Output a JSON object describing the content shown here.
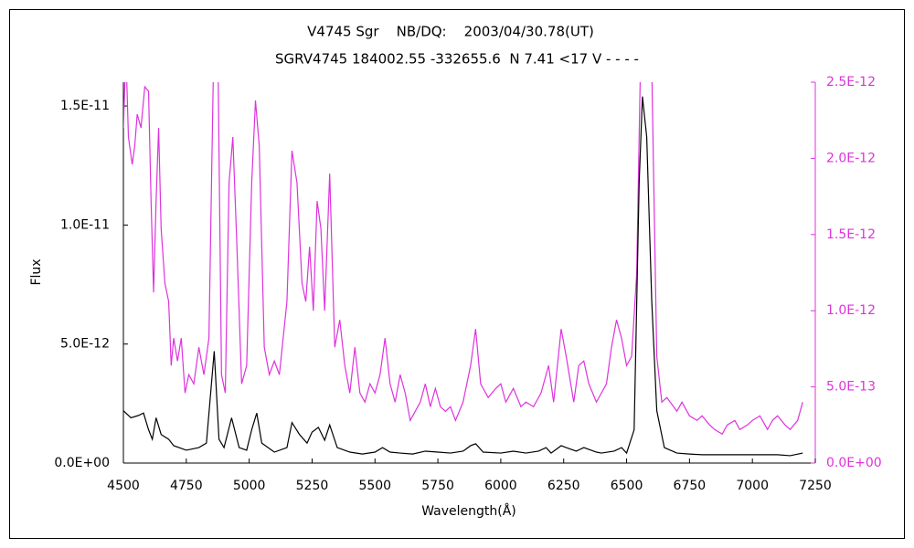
{
  "chart_data": {
    "type": "line",
    "title": "V4745 Sgr    NB/DQ:    2003/04/30.78(UT)",
    "subtitle": "SGRV4745 184002.55 -332655.6  N 7.41 <17 V - - - -",
    "x_label": "Wavelength(Å)",
    "y_label": "Flux",
    "xlim": [
      4500,
      7250
    ],
    "xticks": [
      4500,
      4750,
      5000,
      5250,
      5500,
      5750,
      6000,
      6250,
      6500,
      6750,
      7000,
      7250
    ],
    "ylim": [
      0,
      1.6e-11
    ],
    "yticks": [
      {
        "value": 0,
        "label": "0.0E+00"
      },
      {
        "value": 5e-12,
        "label": "5.0E-12"
      },
      {
        "value": 1e-11,
        "label": "1.0E-11"
      },
      {
        "value": 1.5e-11,
        "label": "1.5E-11"
      }
    ],
    "y2lim": [
      0,
      2.5e-12
    ],
    "y2ticks": [
      {
        "value": 0,
        "label": "0.0E+00"
      },
      {
        "value": 5e-13,
        "label": "5.0E-13"
      },
      {
        "value": 1e-12,
        "label": "1.0E-12"
      },
      {
        "value": 1.5e-12,
        "label": "1.5E-12"
      },
      {
        "value": 2e-12,
        "label": "2.0E-12"
      },
      {
        "value": 2.5e-12,
        "label": "2.5E-12"
      }
    ],
    "grid": false,
    "series": [
      {
        "color": "#000000",
        "x": [
          4500,
          4530,
          4560,
          4580,
          4600,
          4615,
          4630,
          4650,
          4680,
          4700,
          4750,
          4800,
          4830,
          4861,
          4880,
          4900,
          4930,
          4960,
          4990,
          5010,
          5030,
          5050,
          5100,
          5150,
          5170,
          5200,
          5230,
          5250,
          5275,
          5300,
          5320,
          5350,
          5400,
          5450,
          5500,
          5530,
          5560,
          5600,
          5650,
          5700,
          5750,
          5800,
          5850,
          5880,
          5900,
          5930,
          6000,
          6050,
          6100,
          6150,
          6180,
          6200,
          6240,
          6260,
          6300,
          6330,
          6380,
          6400,
          6450,
          6480,
          6500,
          6530,
          6550,
          6563,
          6580,
          6600,
          6620,
          6650,
          6700,
          6750,
          6800,
          6900,
          7000,
          7100,
          7150,
          7200
        ],
        "values": [
          2.2e-12,
          1.9e-12,
          2e-12,
          2.1e-12,
          1.4e-12,
          1e-12,
          1.9e-12,
          1.2e-12,
          1e-12,
          7.3e-13,
          5.4e-13,
          6.5e-13,
          8.4e-13,
          4.7e-12,
          1e-12,
          6.5e-13,
          1.9e-12,
          6.5e-13,
          5.4e-13,
          1.4e-12,
          2.1e-12,
          8.4e-13,
          4.6e-13,
          6.5e-13,
          1.7e-12,
          1.2e-12,
          8.4e-13,
          1.3e-12,
          1.5e-12,
          9.6e-13,
          1.6e-12,
          6.5e-13,
          4.6e-13,
          3.8e-13,
          4.6e-13,
          6.5e-13,
          4.6e-13,
          4.2e-13,
          3.8e-13,
          5e-13,
          4.6e-13,
          4.2e-13,
          5e-13,
          7.3e-13,
          8.1e-13,
          4.6e-13,
          4.2e-13,
          5e-13,
          4.2e-13,
          5e-13,
          6.5e-13,
          4.2e-13,
          7.3e-13,
          6.5e-13,
          5e-13,
          6.5e-13,
          4.6e-13,
          4.2e-13,
          5e-13,
          6.5e-13,
          4.2e-13,
          1.4e-12,
          1.18e-11,
          1.54e-11,
          1.37e-11,
          6.8e-12,
          2.2e-12,
          6.5e-13,
          4.2e-13,
          3.8e-13,
          3.5e-13,
          3.5e-13,
          3.5e-13,
          3.5e-13,
          3.1e-13,
          4.2e-13
        ]
      },
      {
        "color": "#dd33dd",
        "axis": "y2",
        "x": [
          4500,
          4510,
          4520,
          4535,
          4545,
          4555,
          4570,
          4585,
          4600,
          4610,
          4620,
          4630,
          4640,
          4650,
          4665,
          4680,
          4690,
          4700,
          4715,
          4730,
          4745,
          4760,
          4780,
          4800,
          4820,
          4840,
          4861,
          4875,
          4890,
          4905,
          4920,
          4935,
          4950,
          4970,
          4990,
          5010,
          5025,
          5040,
          5060,
          5080,
          5100,
          5120,
          5150,
          5170,
          5190,
          5210,
          5225,
          5240,
          5255,
          5270,
          5285,
          5300,
          5320,
          5340,
          5360,
          5380,
          5400,
          5420,
          5440,
          5460,
          5480,
          5500,
          5520,
          5540,
          5560,
          5580,
          5600,
          5620,
          5640,
          5660,
          5680,
          5700,
          5720,
          5740,
          5760,
          5780,
          5800,
          5820,
          5850,
          5880,
          5900,
          5920,
          5950,
          5980,
          6000,
          6020,
          6050,
          6080,
          6100,
          6130,
          6160,
          6190,
          6210,
          6240,
          6260,
          6290,
          6310,
          6330,
          6350,
          6380,
          6400,
          6420,
          6440,
          6460,
          6480,
          6500,
          6520,
          6540,
          6555,
          6563,
          6580,
          6600,
          6620,
          6640,
          6660,
          6700,
          6720,
          6750,
          6780,
          6800,
          6830,
          6850,
          6880,
          6900,
          6930,
          6950,
          6980,
          7000,
          7030,
          7060,
          7080,
          7100,
          7130,
          7150,
          7180,
          7200
        ],
        "values": [
          2.2e-12,
          2.7e-12,
          2.14e-12,
          1.96e-12,
          2.08e-12,
          2.29e-12,
          2.2e-12,
          2.47e-12,
          2.44e-12,
          1.72e-12,
          1.12e-12,
          1.72e-12,
          2.2e-12,
          1.54e-12,
          1.18e-12,
          1.06e-12,
          6.4e-13,
          8.2e-13,
          6.7e-13,
          8.2e-13,
          4.6e-13,
          5.8e-13,
          5.2e-13,
          7.6e-13,
          5.8e-13,
          8.2e-13,
          2.9e-12,
          2.8e-12,
          5.8e-13,
          4.6e-13,
          1.84e-12,
          2.14e-12,
          1.48e-12,
          5.2e-13,
          6.4e-13,
          1.84e-12,
          2.38e-12,
          2.08e-12,
          7.6e-13,
          5.8e-13,
          6.7e-13,
          5.8e-13,
          1.06e-12,
          2.05e-12,
          1.84e-12,
          1.18e-12,
          1.06e-12,
          1.42e-12,
          1e-12,
          1.72e-12,
          1.54e-12,
          1e-12,
          1.9e-12,
          7.6e-13,
          9.4e-13,
          6.4e-13,
          4.6e-13,
          7.6e-13,
          4.6e-13,
          4e-13,
          5.2e-13,
          4.6e-13,
          5.8e-13,
          8.2e-13,
          5.2e-13,
          4e-13,
          5.8e-13,
          4.6e-13,
          2.8e-13,
          3.4e-13,
          4e-13,
          5.2e-13,
          3.7e-13,
          4.9e-13,
          3.7e-13,
          3.4e-13,
          3.7e-13,
          2.8e-13,
          4e-13,
          6.4e-13,
          8.8e-13,
          5.2e-13,
          4.3e-13,
          4.9e-13,
          5.2e-13,
          4e-13,
          4.9e-13,
          3.7e-13,
          4e-13,
          3.7e-13,
          4.6e-13,
          6.4e-13,
          4e-13,
          8.8e-13,
          7e-13,
          4e-13,
          6.4e-13,
          6.7e-13,
          5.2e-13,
          4e-13,
          4.6e-13,
          5.2e-13,
          7.6e-13,
          9.4e-13,
          8.2e-13,
          6.4e-13,
          7e-13,
          1.24e-12,
          2.6e-12,
          3e-12,
          2.8e-12,
          2.6e-12,
          7e-13,
          4e-13,
          4.3e-13,
          3.4e-13,
          4e-13,
          3.1e-13,
          2.8e-13,
          3.1e-13,
          2.5e-13,
          2.2e-13,
          1.9e-13,
          2.5e-13,
          2.8e-13,
          2.2e-13,
          2.5e-13,
          2.8e-13,
          3.1e-13,
          2.2e-13,
          2.8e-13,
          3.1e-13,
          2.5e-13,
          2.2e-13,
          2.8e-13,
          4e-13
        ]
      }
    ]
  }
}
